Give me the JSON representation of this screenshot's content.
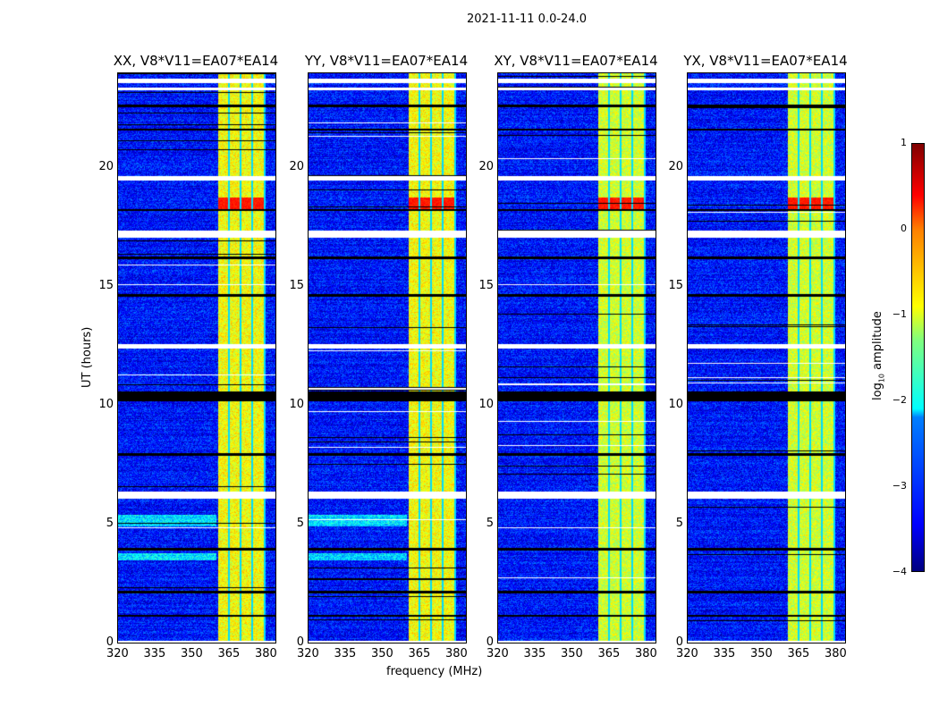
{
  "chart_data": {
    "type": "heatmap",
    "title": "2021-11-11 0.0-24.0",
    "xlabel": "frequency (MHz)",
    "ylabel": "UT (hours)",
    "xlim": [
      320,
      384
    ],
    "ylim": [
      0,
      24
    ],
    "xticks": [
      "320",
      "335",
      "350",
      "365",
      "380"
    ],
    "yticks": [
      "0",
      "5",
      "10",
      "15",
      "20"
    ],
    "colorbar": {
      "label": "log10 amplitude",
      "label_main": "log",
      "label_sub": "10",
      "label_rest": " amplitude",
      "range": [
        -4,
        1
      ],
      "ticks": [
        "1",
        "0",
        "−1",
        "−2",
        "−3",
        "−4"
      ],
      "colormap": "jet"
    },
    "panels": [
      {
        "title": "XX, V8*V11=EA07*EA14",
        "cyan_band": true
      },
      {
        "title": "YY, V8*V11=EA07*EA14",
        "cyan_band": true
      },
      {
        "title": "XY, V8*V11=EA07*EA14",
        "cyan_band": false
      },
      {
        "title": "YX, V8*V11=EA07*EA14",
        "cyan_band": false
      }
    ],
    "features": {
      "background_level": -3.3,
      "rfi_band_mhz": [
        360.5,
        380
      ],
      "rfi_level": -0.9,
      "channel_edges_mhz": [
        365,
        369.5,
        374.5,
        379.5
      ],
      "strong_rfi_hours": [
        18.3,
        18.8
      ],
      "flagged_white_hours": [
        [
          0,
          0.1
        ],
        [
          6.1,
          6.4
        ],
        [
          12.4,
          12.6
        ],
        [
          17.1,
          17.4
        ],
        [
          19.5,
          19.7
        ],
        [
          23.3,
          23.4
        ],
        [
          23.6,
          23.8
        ]
      ],
      "flagged_black_hours": [
        [
          10.2,
          10.6
        ],
        [
          1.1,
          1.2
        ],
        [
          2.1,
          2.2
        ],
        [
          3.9,
          4.0
        ],
        [
          7.9,
          8.0
        ],
        [
          14.6,
          14.7
        ],
        [
          16.2,
          16.3
        ],
        [
          18.2,
          18.3
        ],
        [
          21.6,
          21.7
        ],
        [
          22.6,
          22.7
        ]
      ]
    }
  }
}
